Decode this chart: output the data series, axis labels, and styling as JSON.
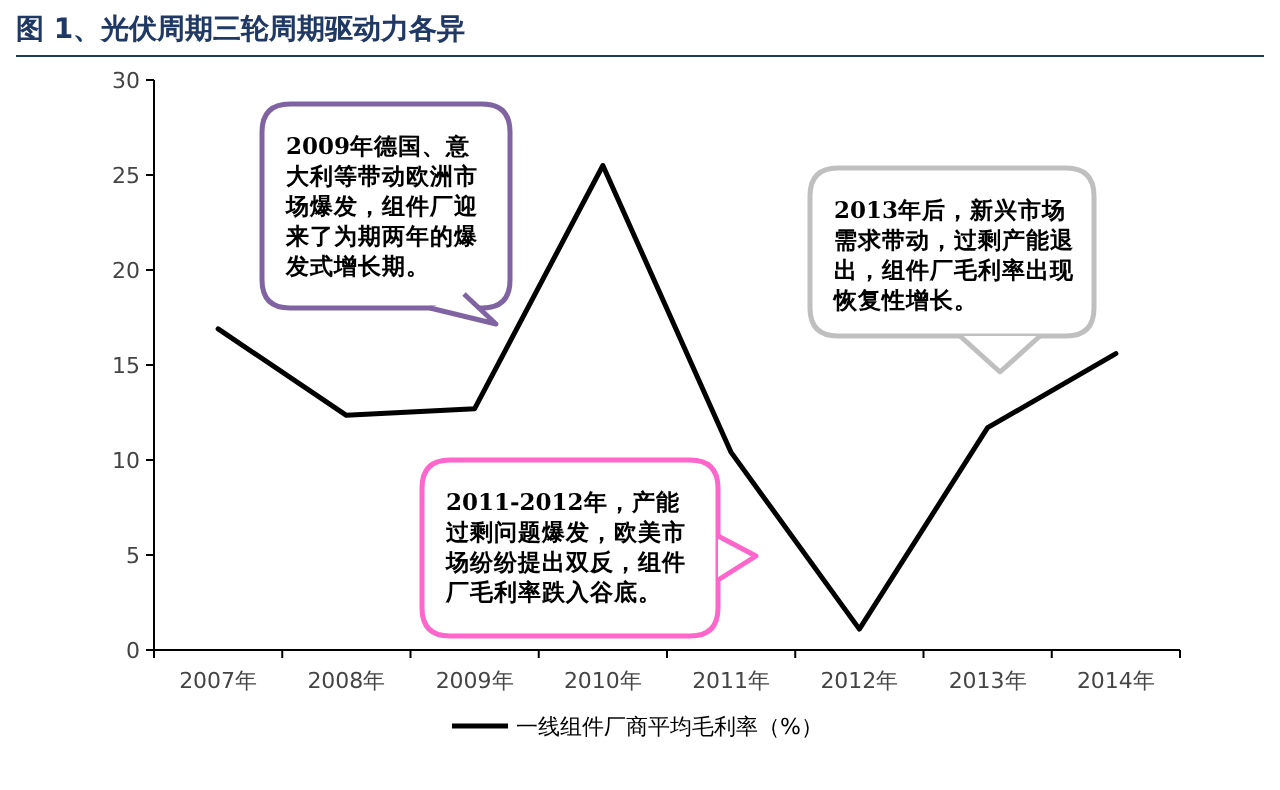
{
  "chart_data": {
    "type": "line",
    "title": "图 1、光伏周期三轮周期驱动力各异",
    "categories": [
      "2007年",
      "2008年",
      "2009年",
      "2010年",
      "2011年",
      "2012年",
      "2013年",
      "2014年"
    ],
    "series": [
      {
        "name": "一线组件厂商平均毛利率（%）",
        "color": "#000000",
        "values": [
          16.9,
          12.35,
          12.7,
          25.5,
          10.4,
          1.1,
          11.7,
          15.6
        ]
      }
    ],
    "ylim": [
      0,
      30
    ],
    "yticks": [
      0,
      5,
      10,
      15,
      20,
      25,
      30
    ],
    "grid": false,
    "legend": "bottom",
    "marker": "none",
    "line_style": "solid",
    "annotations": [
      "2009年德国、意大利等带动欧洲市场爆发，组件厂迎来了为期两年的爆发式增长期。",
      "2013年后，新兴市场需求带动，过剩产能退出，组件厂毛利率出现恢复性增长。",
      "2011-2012年，产能过剩问题爆发，欧美市场纷纷提出双反，组件厂毛利率跌入谷底。"
    ]
  }
}
